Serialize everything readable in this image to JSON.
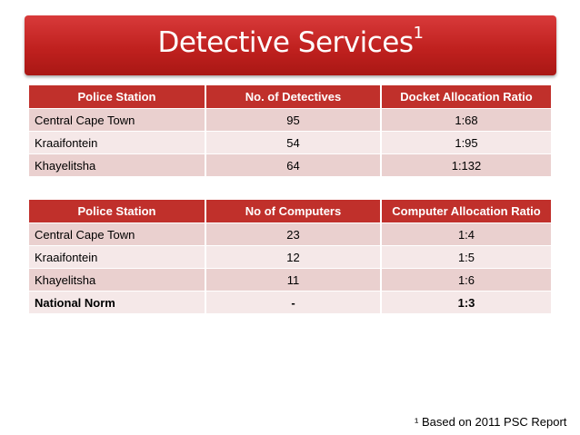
{
  "title": "Detective Services",
  "title_superscript": "1",
  "table1": {
    "headers": [
      "Police Station",
      "No. of Detectives",
      "Docket Allocation Ratio"
    ],
    "rows": [
      [
        "Central Cape Town",
        "95",
        "1:68"
      ],
      [
        "Kraaifontein",
        "54",
        "1:95"
      ],
      [
        "Khayelitsha",
        "64",
        "1:132"
      ]
    ]
  },
  "table2": {
    "headers": [
      "Police Station",
      "No of Computers",
      "Computer Allocation Ratio"
    ],
    "rows": [
      [
        "Central Cape Town",
        "23",
        "1:4"
      ],
      [
        "Kraaifontein",
        "12",
        "1:5"
      ],
      [
        "Khayelitsha",
        "11",
        "1:6"
      ],
      [
        "National Norm",
        "-",
        "1:3"
      ]
    ]
  },
  "footnote": "¹ Based on 2011 PSC Report",
  "colors": {
    "banner": "#c0211f",
    "header": "#c0302b",
    "row_odd": "#ead0cf",
    "row_even": "#f5e8e8"
  }
}
